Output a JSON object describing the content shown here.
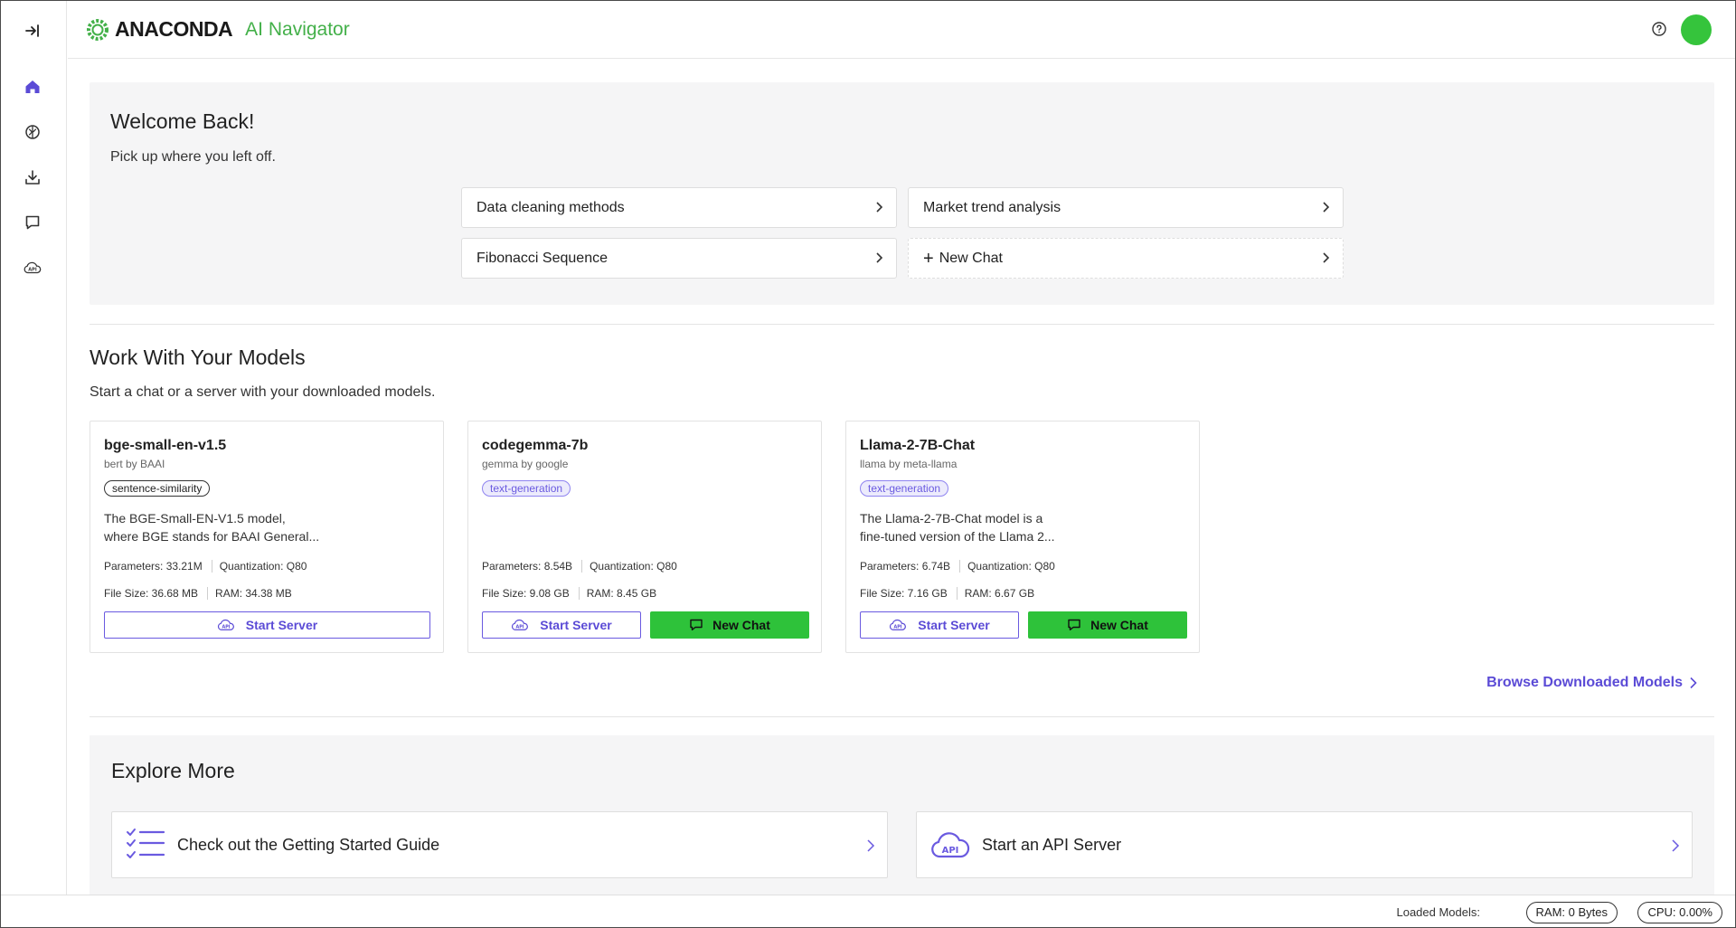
{
  "header": {
    "brand": "ANACONDA",
    "app_name": "AI Navigator"
  },
  "sidebar": {
    "items": [
      {
        "name": "expand",
        "icon": "expand-icon"
      },
      {
        "name": "home",
        "icon": "home-icon"
      },
      {
        "name": "models",
        "icon": "brain-icon"
      },
      {
        "name": "downloads",
        "icon": "download-icon"
      },
      {
        "name": "chat",
        "icon": "chat-icon"
      },
      {
        "name": "api-server",
        "icon": "api-cloud-icon"
      }
    ]
  },
  "welcome": {
    "title": "Welcome Back!",
    "subtitle": "Pick up where you left off.",
    "recent_chats": [
      "Data cleaning methods",
      "Market trend analysis",
      "Fibonacci Sequence"
    ],
    "new_chat": "New Chat"
  },
  "models_section": {
    "title": "Work With Your Models",
    "subtitle": "Start a chat or a server with your downloaded models.",
    "cards": [
      {
        "name": "bge-small-en-v1.5",
        "by": "bert by BAAI",
        "tag": "sentence-similarity",
        "desc_line1": "The BGE-Small-EN-V1.5 model,",
        "desc_line2": "where BGE stands for BAAI General...",
        "parameters": "Parameters: 33.21M",
        "quantization": "Quantization: Q80",
        "file_size": "File Size: 36.68 MB",
        "ram": "RAM: 34.38 MB",
        "server_label": "Start Server"
      },
      {
        "name": "codegemma-7b",
        "by": "gemma by google",
        "tag": "text-generation",
        "parameters": "Parameters: 8.54B",
        "quantization": "Quantization: Q80",
        "file_size": "File Size: 9.08 GB",
        "ram": "RAM: 8.45 GB",
        "server_label": "Start Server",
        "chat_label": "New Chat"
      },
      {
        "name": "Llama-2-7B-Chat",
        "by": "llama by meta-llama",
        "tag": "text-generation",
        "desc_line1": "The Llama-2-7B-Chat model is a",
        "desc_line2": "fine-tuned version of the Llama 2...",
        "parameters": "Parameters: 6.74B",
        "quantization": "Quantization: Q80",
        "file_size": "File Size: 7.16 GB",
        "ram": "RAM: 6.67 GB",
        "server_label": "Start Server",
        "chat_label": "New Chat"
      }
    ],
    "browse_link": "Browse Downloaded Models"
  },
  "explore": {
    "title": "Explore More",
    "cards": [
      "Check out the Getting Started Guide",
      "Start an API Server"
    ],
    "api_icon_text": "API"
  },
  "status_bar": {
    "label": "Loaded Models:",
    "ram": "RAM: 0 Bytes",
    "cpu": "CPU: 0.00%"
  },
  "colors": {
    "accent": "#5b4bd6",
    "brand_green": "#43b049",
    "button_green": "#2ec23a"
  }
}
